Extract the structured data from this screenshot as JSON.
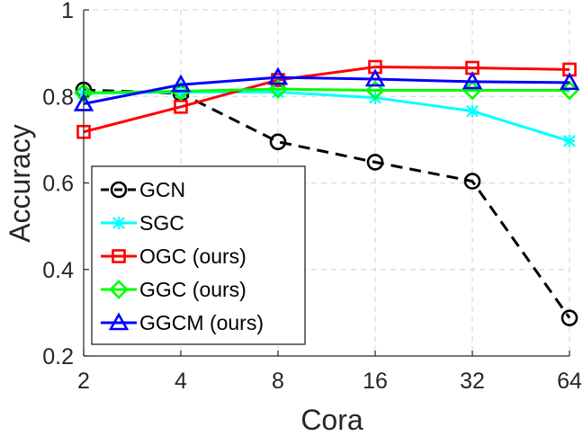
{
  "chart_data": {
    "type": "line",
    "title": "",
    "xlabel": "Cora",
    "ylabel": "Accuracy",
    "categories": [
      "2",
      "4",
      "8",
      "16",
      "32",
      "64"
    ],
    "ylim": [
      0.2,
      1.0
    ],
    "yticks": [
      0.2,
      0.4,
      0.6,
      0.8,
      1.0
    ],
    "ytick_labels": [
      "0.2",
      "0.4",
      "0.6",
      "0.8",
      "1"
    ],
    "grid": true,
    "legend_position": "bottom-left",
    "series": [
      {
        "name": "GCN",
        "color": "#000000",
        "marker": "circle",
        "dash": true,
        "values": [
          0.815,
          0.807,
          0.695,
          0.648,
          0.604,
          0.288
        ]
      },
      {
        "name": "SGC",
        "color": "#00ffff",
        "marker": "asterisk",
        "dash": false,
        "values": [
          0.807,
          0.81,
          0.81,
          0.797,
          0.766,
          0.697
        ]
      },
      {
        "name": "OGC (ours)",
        "color": "#ff0000",
        "marker": "square",
        "dash": false,
        "values": [
          0.718,
          0.776,
          0.838,
          0.868,
          0.866,
          0.862
        ]
      },
      {
        "name": "GGC (ours)",
        "color": "#00ff00",
        "marker": "diamond",
        "dash": false,
        "values": [
          0.808,
          0.812,
          0.817,
          0.814,
          0.814,
          0.814
        ]
      },
      {
        "name": "GGCM (ours)",
        "color": "#0000ff",
        "marker": "triangle",
        "dash": false,
        "values": [
          0.783,
          0.827,
          0.844,
          0.84,
          0.834,
          0.832
        ]
      }
    ]
  }
}
